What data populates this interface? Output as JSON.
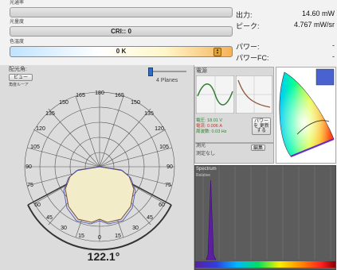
{
  "top": {
    "label1": "光通率",
    "label2": "光量度",
    "cri_text": "CRI:: 0",
    "label3": "色温度",
    "cct_text": "0 K"
  },
  "readout": {
    "output_label": "出力:",
    "output_value": "14.60 mW",
    "peak_label": "ピーク:",
    "peak_value": "4.767 mW/sr",
    "power_label": "パワー:",
    "power_value": "-",
    "powerfc_label": "パワーFC:",
    "powerfc_value": "-"
  },
  "polar": {
    "title": "配光角:",
    "view_button": "ビュー",
    "sub_label": "角度ルーア",
    "planes_label": "4 Planes",
    "angle_labels": {
      "t180": "180",
      "t165L": "165",
      "t165R": "165",
      "t150L": "150",
      "t150R": "150",
      "t135L": "135",
      "t135R": "135",
      "t120L": "120",
      "t120R": "120",
      "t105L": "105",
      "t105R": "105",
      "t90L": "90",
      "t90R": "90",
      "t75L": "75",
      "t75R": "75",
      "t60L": "60",
      "t60R": "60",
      "t45L": "45",
      "t45R": "45",
      "t30L": "30",
      "t30R": "30",
      "t15L": "15",
      "t15R": "15",
      "t0": "0"
    },
    "beam_angle": "122.1°",
    "colors": {
      "plane1": "#7b4b3a",
      "plane2": "#3d4fb0",
      "fill": "#f3ecc8"
    }
  },
  "electrical": {
    "title": "電源",
    "voltage": "電圧:    18.01 V",
    "current": "電流:    0.006 A",
    "frequency": "周波数:   0.03 Hz",
    "button": "パワーを 更新する"
  },
  "measure": {
    "title": "測光",
    "status": "測定なし",
    "button": "編集"
  },
  "spectrum": {
    "title": "Spectrum",
    "sublabel": "Relative"
  }
}
